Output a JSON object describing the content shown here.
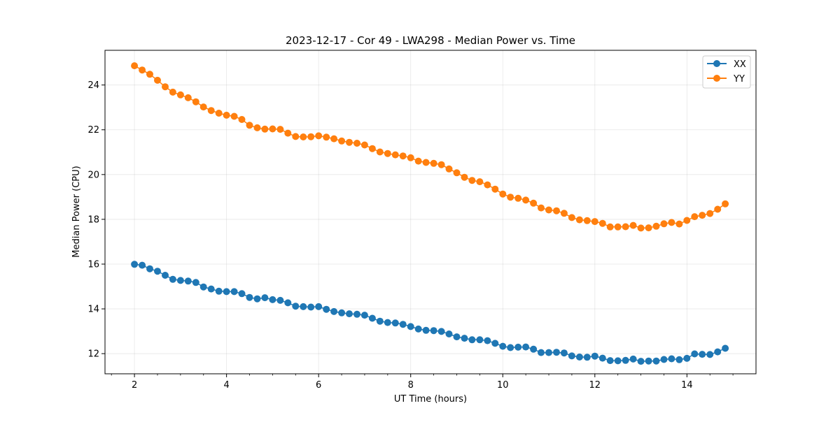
{
  "chart_data": {
    "type": "line",
    "title": "2023-12-17 - Cor 49 - LWA298 - Median Power vs. Time",
    "xlabel": "UT Time (hours)",
    "ylabel": "Median Power (CPU)",
    "xlim": [
      1.36,
      15.5
    ],
    "ylim": [
      11.1,
      25.55
    ],
    "x_major_ticks": [
      2,
      4,
      6,
      8,
      10,
      12,
      14
    ],
    "x_major_tick_labels": [
      "2",
      "4",
      "6",
      "8",
      "10",
      "12",
      "14"
    ],
    "x_minor_ticks": [
      1.5,
      2.5,
      3,
      3.5,
      4.5,
      5,
      5.5,
      6.5,
      7,
      7.5,
      8.5,
      9,
      9.5,
      10.5,
      11,
      11.5,
      12.5,
      13,
      13.5,
      14.5,
      15
    ],
    "y_major_ticks": [
      12,
      14,
      16,
      18,
      20,
      22,
      24
    ],
    "y_major_tick_labels": [
      "12",
      "14",
      "16",
      "18",
      "20",
      "22",
      "24"
    ],
    "grid": true,
    "legend_position": "top-right",
    "x": [
      2.0,
      2.167,
      2.333,
      2.5,
      2.667,
      2.833,
      3.0,
      3.167,
      3.333,
      3.5,
      3.667,
      3.833,
      4.0,
      4.167,
      4.333,
      4.5,
      4.667,
      4.833,
      5.0,
      5.167,
      5.333,
      5.5,
      5.667,
      5.833,
      6.0,
      6.167,
      6.333,
      6.5,
      6.667,
      6.833,
      7.0,
      7.167,
      7.333,
      7.5,
      7.667,
      7.833,
      8.0,
      8.167,
      8.333,
      8.5,
      8.667,
      8.833,
      9.0,
      9.167,
      9.333,
      9.5,
      9.667,
      9.833,
      10.0,
      10.167,
      10.333,
      10.5,
      10.667,
      10.833,
      11.0,
      11.167,
      11.333,
      11.5,
      11.667,
      11.833,
      12.0,
      12.167,
      12.333,
      12.5,
      12.667,
      12.833,
      13.0,
      13.167,
      13.333,
      13.5,
      13.667,
      13.833,
      14.0,
      14.167,
      14.333,
      14.5,
      14.667,
      14.833
    ],
    "series": [
      {
        "name": "XX",
        "color": "#1f77b4",
        "values": [
          15.99,
          15.95,
          15.79,
          15.68,
          15.5,
          15.32,
          15.27,
          15.24,
          15.18,
          14.98,
          14.89,
          14.79,
          14.77,
          14.77,
          14.68,
          14.51,
          14.45,
          14.5,
          14.41,
          14.38,
          14.27,
          14.12,
          14.1,
          14.08,
          14.1,
          13.98,
          13.88,
          13.82,
          13.78,
          13.76,
          13.72,
          13.58,
          13.45,
          13.39,
          13.37,
          13.31,
          13.21,
          13.1,
          13.04,
          13.03,
          12.99,
          12.88,
          12.75,
          12.69,
          12.62,
          12.62,
          12.58,
          12.46,
          12.33,
          12.27,
          12.29,
          12.3,
          12.2,
          12.05,
          12.05,
          12.06,
          12.03,
          11.9,
          11.85,
          11.84,
          11.89,
          11.8,
          11.69,
          11.68,
          11.7,
          11.76,
          11.66,
          11.67,
          11.67,
          11.74,
          11.77,
          11.73,
          11.79,
          11.99,
          11.97,
          11.96,
          12.08,
          12.24
        ]
      },
      {
        "name": "YY",
        "color": "#ff7f0e",
        "values": [
          24.86,
          24.67,
          24.48,
          24.21,
          23.92,
          23.68,
          23.56,
          23.43,
          23.25,
          23.02,
          22.86,
          22.74,
          22.65,
          22.6,
          22.46,
          22.2,
          22.09,
          22.03,
          22.04,
          22.02,
          21.85,
          21.7,
          21.68,
          21.69,
          21.73,
          21.67,
          21.6,
          21.5,
          21.44,
          21.4,
          21.32,
          21.16,
          21.01,
          20.94,
          20.88,
          20.83,
          20.75,
          20.6,
          20.54,
          20.5,
          20.44,
          20.25,
          20.08,
          19.88,
          19.74,
          19.68,
          19.54,
          19.35,
          19.13,
          18.99,
          18.94,
          18.86,
          18.72,
          18.51,
          18.42,
          18.38,
          18.27,
          18.08,
          17.98,
          17.94,
          17.9,
          17.82,
          17.66,
          17.66,
          17.67,
          17.73,
          17.61,
          17.62,
          17.69,
          17.8,
          17.86,
          17.79,
          17.95,
          18.12,
          18.18,
          18.26,
          18.45,
          18.69
        ]
      }
    ]
  }
}
